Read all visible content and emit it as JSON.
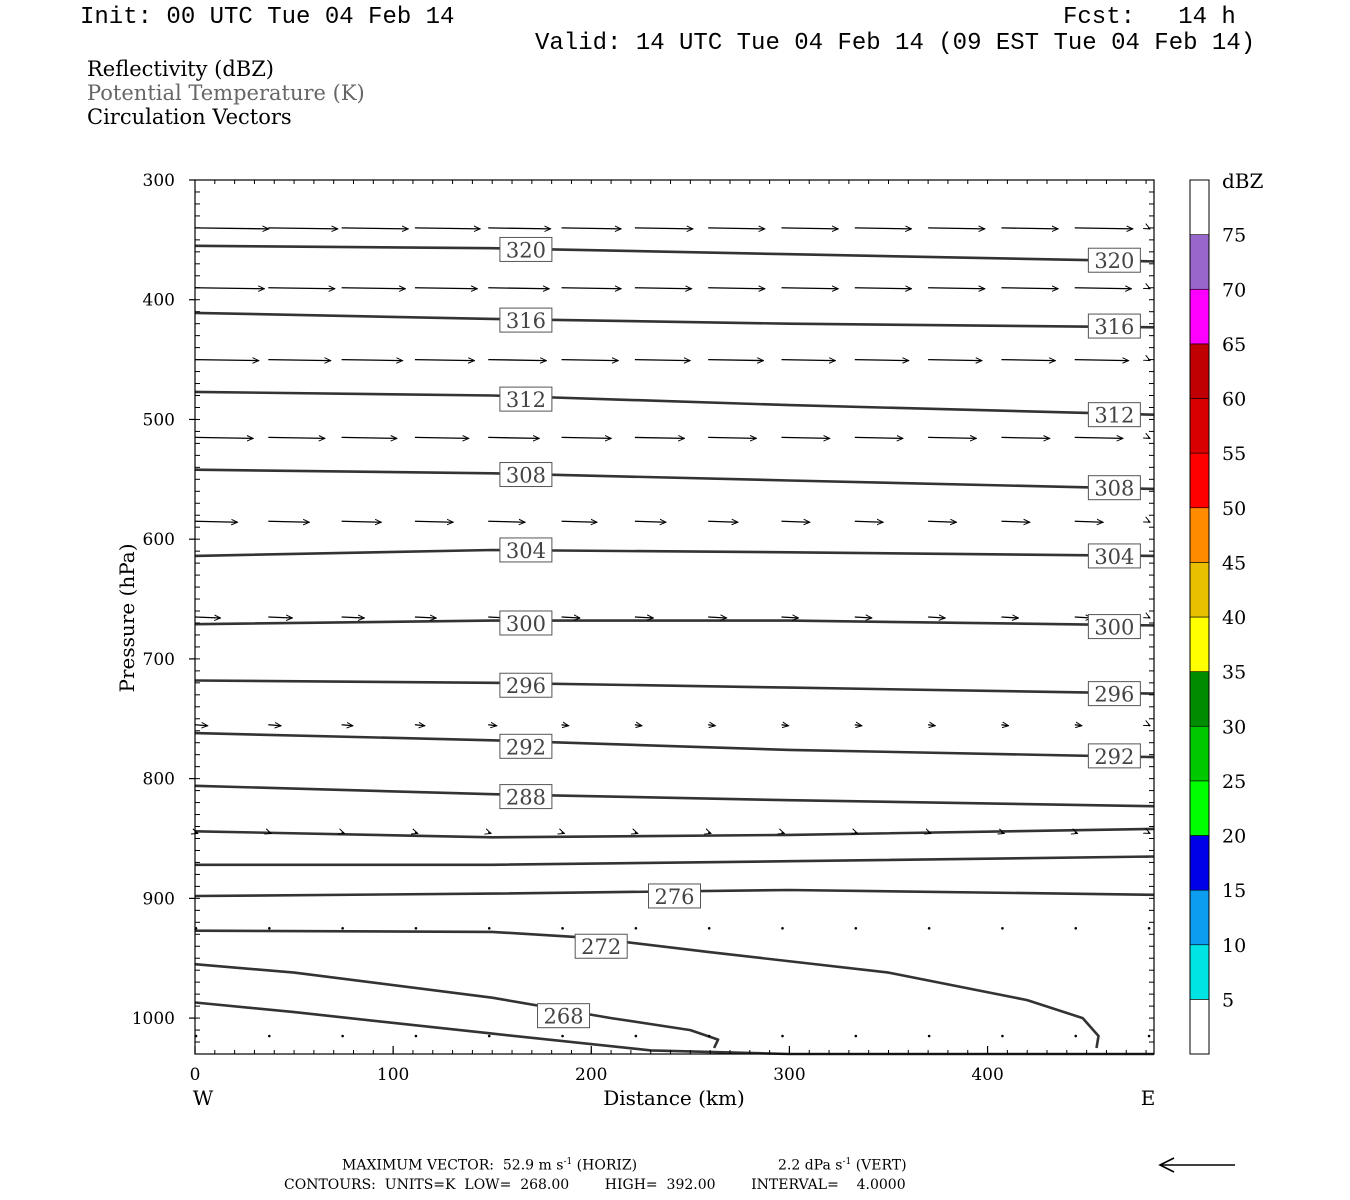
{
  "header": {
    "init": "Init: 00 UTC Tue 04 Feb 14",
    "fcst": "Fcst:   14 h",
    "valid": "Valid: 14 UTC Tue 04 Feb 14 (09 EST Tue 04 Feb 14)"
  },
  "legend": {
    "reflectivity": "Reflectivity (dBZ)",
    "theta": "Potential Temperature (K)",
    "vectors": "Circulation Vectors",
    "theta_color": "#666666"
  },
  "footer": {
    "max_vector_label": "MAXIMUM VECTOR:",
    "max_horiz": "52.9 m s",
    "max_horiz_unit": "(HORIZ)",
    "max_vert": "2.2 dPa s",
    "max_vert_unit": "(VERT)",
    "exponent": "-1",
    "contours": "CONTOURS:  UNITS=K  LOW=  268.00        HIGH=  392.00        INTERVAL=    4.0000"
  },
  "chart_data": {
    "type": "line",
    "xlabel": "Distance (km)",
    "ylabel": "Pressure (hPa)",
    "xlim": [
      0,
      484
    ],
    "ylim": [
      1030,
      300
    ],
    "x_ticks": [
      0,
      100,
      200,
      300,
      400
    ],
    "y_ticks": [
      300,
      400,
      500,
      600,
      700,
      800,
      900,
      1000
    ],
    "x_end_labels": [
      "W",
      "E"
    ],
    "series": [
      {
        "name": "320",
        "x": [
          0,
          150,
          300,
          484
        ],
        "y": [
          355,
          357,
          362,
          368
        ]
      },
      {
        "name": "316",
        "x": [
          0,
          150,
          300,
          484
        ],
        "y": [
          411,
          416,
          420,
          423
        ]
      },
      {
        "name": "312",
        "x": [
          0,
          150,
          300,
          484
        ],
        "y": [
          477,
          480,
          488,
          496
        ]
      },
      {
        "name": "308",
        "x": [
          0,
          150,
          300,
          484
        ],
        "y": [
          542,
          545,
          551,
          558
        ]
      },
      {
        "name": "304",
        "x": [
          0,
          150,
          300,
          484
        ],
        "y": [
          614,
          609,
          611,
          614
        ]
      },
      {
        "name": "300",
        "x": [
          0,
          150,
          300,
          484
        ],
        "y": [
          671,
          668,
          668,
          672
        ]
      },
      {
        "name": "296",
        "x": [
          0,
          150,
          300,
          484
        ],
        "y": [
          718,
          720,
          724,
          729
        ]
      },
      {
        "name": "292",
        "x": [
          0,
          150,
          300,
          484
        ],
        "y": [
          762,
          768,
          776,
          782
        ]
      },
      {
        "name": "288",
        "x": [
          0,
          150,
          300,
          484
        ],
        "y": [
          806,
          813,
          818,
          823
        ]
      },
      {
        "name": "",
        "x": [
          0,
          150,
          300,
          484
        ],
        "y": [
          844,
          849,
          847,
          842
        ]
      },
      {
        "name": "",
        "x": [
          0,
          150,
          300,
          484
        ],
        "y": [
          872,
          872,
          869,
          865
        ]
      },
      {
        "name": "276",
        "x": [
          0,
          150,
          300,
          484
        ],
        "y": [
          898,
          896,
          893,
          897
        ]
      },
      {
        "name": "272",
        "x": [
          0,
          150,
          200,
          260,
          350,
          420,
          448,
          456,
          455
        ],
        "y": [
          927,
          928,
          933,
          945,
          962,
          985,
          1000,
          1015,
          1025
        ]
      },
      {
        "name": "268",
        "x": [
          0,
          50,
          150,
          210,
          250,
          264,
          262
        ],
        "y": [
          955,
          962,
          983,
          1000,
          1010,
          1018,
          1025
        ]
      },
      {
        "name": "",
        "x": [
          0,
          50,
          150,
          230,
          300,
          484
        ],
        "y": [
          987,
          995,
          1013,
          1027,
          1030,
          1030
        ]
      }
    ],
    "contour_labels": [
      {
        "text": "320",
        "x": 167,
        "y": 358
      },
      {
        "text": "320",
        "x": 464,
        "y": 367
      },
      {
        "text": "316",
        "x": 167,
        "y": 417
      },
      {
        "text": "316",
        "x": 464,
        "y": 422
      },
      {
        "text": "312",
        "x": 167,
        "y": 483
      },
      {
        "text": "312",
        "x": 464,
        "y": 496
      },
      {
        "text": "308",
        "x": 167,
        "y": 546
      },
      {
        "text": "308",
        "x": 464,
        "y": 557
      },
      {
        "text": "304",
        "x": 167,
        "y": 609
      },
      {
        "text": "304",
        "x": 464,
        "y": 614
      },
      {
        "text": "300",
        "x": 167,
        "y": 670
      },
      {
        "text": "300",
        "x": 464,
        "y": 673
      },
      {
        "text": "296",
        "x": 167,
        "y": 722
      },
      {
        "text": "296",
        "x": 464,
        "y": 729
      },
      {
        "text": "292",
        "x": 167,
        "y": 773
      },
      {
        "text": "292",
        "x": 464,
        "y": 781
      },
      {
        "text": "288",
        "x": 167,
        "y": 815
      },
      {
        "text": "276",
        "x": 242,
        "y": 898
      },
      {
        "text": "272",
        "x": 205,
        "y": 940
      },
      {
        "text": "268",
        "x": 186,
        "y": 998
      }
    ],
    "vector_x": [
      0,
      37,
      74,
      111,
      148,
      185,
      222,
      259,
      296,
      333,
      370,
      407,
      444,
      481
    ],
    "vector_levels": [
      {
        "p": 340,
        "u": [
          52,
          49,
          47,
          46,
          44,
          42,
          41,
          40,
          40,
          40,
          40,
          40,
          41,
          42
        ]
      },
      {
        "p": 390,
        "u": [
          49,
          47,
          45,
          44,
          43,
          42,
          40,
          40,
          40,
          40,
          40,
          40,
          40,
          41
        ]
      },
      {
        "p": 450,
        "u": [
          45,
          44,
          43,
          42,
          41,
          40,
          39,
          39,
          38,
          38,
          38,
          38,
          38,
          38
        ]
      },
      {
        "p": 515,
        "u": [
          41,
          40,
          39,
          38,
          36,
          35,
          35,
          34,
          34,
          34,
          34,
          34,
          34,
          34
        ]
      },
      {
        "p": 585,
        "u": [
          30,
          29,
          28,
          27,
          26,
          25,
          22,
          21,
          20,
          20,
          20,
          20,
          20,
          20
        ]
      },
      {
        "p": 665,
        "u": [
          18,
          17,
          16,
          15,
          14,
          13,
          13,
          13,
          12,
          12,
          12,
          12,
          12,
          12
        ]
      },
      {
        "p": 755,
        "u": [
          9,
          9,
          8,
          7,
          6,
          5,
          5,
          5,
          5,
          5,
          5,
          5,
          5,
          5
        ]
      },
      {
        "p": 845,
        "u": [
          2,
          2,
          2,
          2,
          2,
          2,
          2,
          2,
          2,
          2,
          2,
          2,
          2,
          2
        ]
      },
      {
        "p": 925,
        "u": [
          1,
          1,
          1,
          1,
          1,
          1,
          1,
          1,
          1,
          1,
          1,
          1,
          1,
          1
        ]
      },
      {
        "p": 1015,
        "u": [
          1,
          1,
          1,
          1,
          1,
          1,
          1,
          1,
          1,
          1,
          1,
          1,
          1,
          1
        ]
      }
    ],
    "colorbar": {
      "label": "dBZ",
      "ticks": [
        "5",
        "10",
        "15",
        "20",
        "25",
        "30",
        "35",
        "40",
        "45",
        "50",
        "55",
        "60",
        "65",
        "70",
        "75"
      ],
      "colors": [
        "#00e4e4",
        "#0c9cf0",
        "#0000e8",
        "#00ff00",
        "#00c800",
        "#008c00",
        "#ffff00",
        "#e8c000",
        "#ff8c00",
        "#ff0000",
        "#d80000",
        "#c00000",
        "#ff00ff",
        "#9966cc",
        "#ffffff"
      ]
    },
    "reference_vector": "westward arrow"
  }
}
